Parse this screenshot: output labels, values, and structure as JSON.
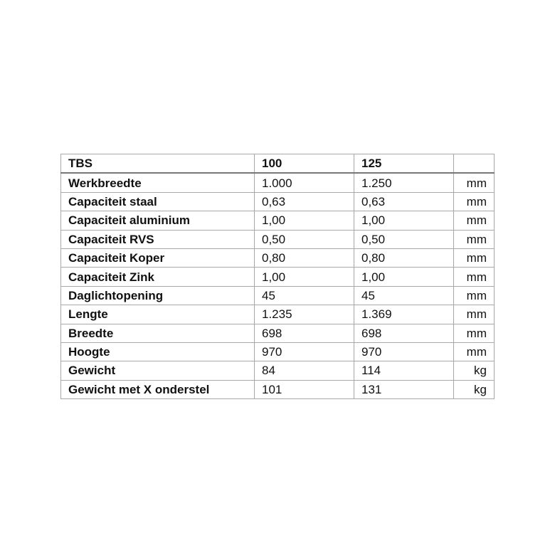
{
  "table": {
    "header": [
      "TBS",
      "100",
      "125",
      ""
    ],
    "rows": [
      [
        "Werkbreedte",
        "1.000",
        "1.250",
        "mm"
      ],
      [
        "Capaciteit staal",
        "0,63",
        "0,63",
        "mm"
      ],
      [
        "Capaciteit aluminium",
        "1,00",
        "1,00",
        "mm"
      ],
      [
        "Capaciteit RVS",
        "0,50",
        "0,50",
        "mm"
      ],
      [
        "Capaciteit Koper",
        "0,80",
        "0,80",
        "mm"
      ],
      [
        "Capaciteit Zink",
        "1,00",
        "1,00",
        "mm"
      ],
      [
        "Daglichtopening",
        "45",
        "45",
        "mm"
      ],
      [
        "Lengte",
        "1.235",
        "1.369",
        "mm"
      ],
      [
        "Breedte",
        "698",
        "698",
        "mm"
      ],
      [
        "Hoogte",
        "970",
        "970",
        "mm"
      ],
      [
        "Gewicht",
        "84",
        "114",
        "kg"
      ],
      [
        "Gewicht met X onderstel",
        "101",
        "131",
        "kg"
      ]
    ]
  }
}
